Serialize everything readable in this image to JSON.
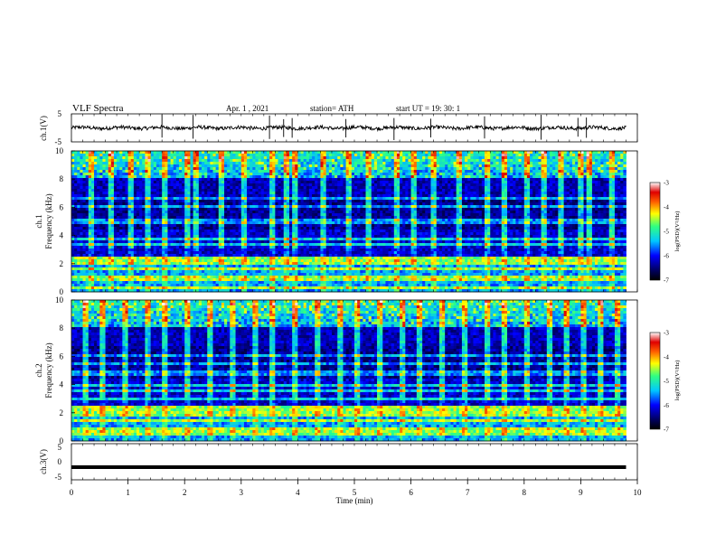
{
  "header": {
    "title": "VLF  Spectra",
    "date": "Apr. 1  , 2021",
    "station": "station= ATH",
    "start": "start  UT  =    19: 30: 1"
  },
  "labels": {
    "ch1_top": "ch.1(V)",
    "ch1_spec_a": "ch.1",
    "ch1_spec_b": "Frequency  (kHz)",
    "ch2_spec_a": "ch.2",
    "ch2_spec_b": "Frequency  (kHz)",
    "ch3_bottom": "ch.3(V)",
    "xlabel": "Time  (min)",
    "colorbar1": "log(PSD)(V²/Hz)",
    "colorbar2": "log(PSD)(V²/Hz)"
  },
  "chart_data": [
    {
      "type": "line",
      "name": "ch.1 waveform",
      "ylabel": "ch.1(V)",
      "ylim": [
        -5,
        5
      ],
      "yticks": [
        "5",
        "-5"
      ],
      "xlim": [
        0,
        10
      ],
      "x_extent": 9.8,
      "baseline": 0,
      "spike_times_min": [
        1.6,
        2.15,
        3.5,
        3.75,
        3.9,
        4.85,
        5.7,
        6.35,
        7.3,
        8.3,
        8.95,
        9.1
      ],
      "color": "#000000"
    },
    {
      "type": "heatmap",
      "name": "ch.1 spectrogram",
      "ylabel": "Frequency  (kHz)",
      "ylim": [
        0,
        10
      ],
      "yticks": [
        "0",
        "2",
        "4",
        "6",
        "8",
        "10"
      ],
      "xlim": [
        0,
        10
      ],
      "x_extent": 9.8,
      "clim": [
        -7,
        -3
      ],
      "colorbar_ticks": [
        "-3",
        "-4",
        "-5",
        "-6",
        "-7"
      ],
      "bands_khz": [
        0.3,
        0.8,
        1.1,
        1.6,
        2.0,
        2.3,
        3.3,
        3.8,
        5.0,
        6.0,
        6.6
      ],
      "sferic_times_min": [
        0.3,
        0.65,
        1.0,
        1.3,
        1.6,
        2.0,
        2.15,
        2.6,
        3.0,
        3.5,
        3.75,
        3.9,
        4.4,
        4.85,
        5.2,
        5.7,
        6.0,
        6.35,
        6.8,
        7.3,
        7.6,
        8.0,
        8.3,
        8.6,
        8.95,
        9.1,
        9.5
      ]
    },
    {
      "type": "heatmap",
      "name": "ch.2 spectrogram",
      "ylabel": "Frequency  (kHz)",
      "ylim": [
        0,
        10
      ],
      "yticks": [
        "0",
        "2",
        "4",
        "6",
        "8",
        "10"
      ],
      "xlim": [
        0,
        10
      ],
      "x_extent": 9.8,
      "clim": [
        -7,
        -3
      ],
      "colorbar_ticks": [
        "-3",
        "-4",
        "-5",
        "-6",
        "-7"
      ],
      "bands_khz": [
        0.6,
        0.9,
        1.4,
        1.9,
        2.3,
        3.0,
        3.5,
        4.0,
        4.8,
        5.5,
        6.0
      ],
      "sferic_times_min": [
        0.2,
        0.5,
        0.9,
        1.3,
        1.6,
        2.0,
        2.4,
        2.8,
        3.2,
        3.5,
        3.9,
        4.3,
        4.7,
        5.0,
        5.4,
        5.8,
        6.1,
        6.5,
        6.9,
        7.3,
        7.6,
        8.0,
        8.4,
        8.7,
        9.0,
        9.3,
        9.6
      ]
    },
    {
      "type": "line",
      "name": "ch.3 waveform",
      "ylabel": "ch.3(V)",
      "ylim": [
        -5,
        5
      ],
      "yticks": [
        "5",
        "0",
        "-5"
      ],
      "xlim": [
        0,
        10
      ],
      "x_extent": 9.8,
      "baseline": -1.5,
      "color": "#000000"
    }
  ],
  "x_axis": {
    "label": "Time  (min)",
    "ticks": [
      "0",
      "1",
      "2",
      "3",
      "4",
      "5",
      "6",
      "7",
      "8",
      "9",
      "10"
    ]
  }
}
